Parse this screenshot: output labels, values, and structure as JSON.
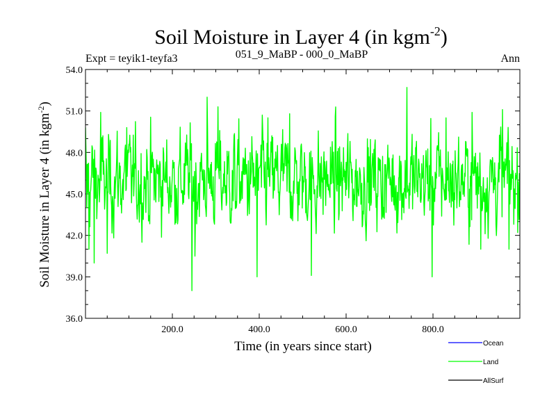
{
  "chart_data": {
    "type": "line",
    "title": "Soil Moisture in Layer 4 (in kgm",
    "title_sup": "-2",
    "title_close": ")",
    "subtitle_left": "Expt = teyik1-teyfa3",
    "subtitle_center": "051_9_MaBP - 000_0_MaBP",
    "subtitle_right": "Ann",
    "xlabel": "Time (in years since start)",
    "ylabel": "Soil Moisture in Layer 4 (in kgm",
    "ylabel_sup": "-2",
    "ylabel_close": ")",
    "xlim": [
      0,
      1000
    ],
    "ylim": [
      36.0,
      54.0
    ],
    "x_ticks": [
      200,
      400,
      600,
      800
    ],
    "x_tick_labels": [
      "200.0",
      "400.0",
      "600.0",
      "800.0"
    ],
    "y_ticks": [
      36,
      39,
      42,
      45,
      48,
      51,
      54
    ],
    "y_tick_labels": [
      "36.0",
      "39.0",
      "42.0",
      "45.0",
      "48.0",
      "51.0",
      "54.0"
    ],
    "legend": [
      {
        "name": "Ocean",
        "color": "#0000ff"
      },
      {
        "name": "Land",
        "color": "#00ff00"
      },
      {
        "name": "AllSurf",
        "color": "#000000"
      }
    ],
    "series": [
      {
        "name": "Land",
        "color": "#00ff00",
        "n_points": 1000,
        "mean": 46.0,
        "std": 1.8,
        "min": 38.0,
        "max": 52.7,
        "notable_points": [
          {
            "x": 0,
            "y": 49.8
          },
          {
            "x": 3,
            "y": 44.0
          },
          {
            "x": 8,
            "y": 41.0
          },
          {
            "x": 20,
            "y": 40.0
          },
          {
            "x": 35,
            "y": 50.9
          },
          {
            "x": 50,
            "y": 40.7
          },
          {
            "x": 95,
            "y": 49.8
          },
          {
            "x": 245,
            "y": 38.0
          },
          {
            "x": 252,
            "y": 40.5
          },
          {
            "x": 280,
            "y": 52.0
          },
          {
            "x": 305,
            "y": 51.3
          },
          {
            "x": 340,
            "y": 44.5
          },
          {
            "x": 395,
            "y": 39.0
          },
          {
            "x": 420,
            "y": 50.5
          },
          {
            "x": 470,
            "y": 50.8
          },
          {
            "x": 520,
            "y": 39.1
          },
          {
            "x": 575,
            "y": 50.6
          },
          {
            "x": 720,
            "y": 44.0
          },
          {
            "x": 740,
            "y": 52.7
          },
          {
            "x": 798,
            "y": 39.0
          },
          {
            "x": 830,
            "y": 50.5
          },
          {
            "x": 890,
            "y": 50.9
          },
          {
            "x": 910,
            "y": 41.0
          },
          {
            "x": 960,
            "y": 51.1
          },
          {
            "x": 975,
            "y": 41.0
          },
          {
            "x": 999,
            "y": 46.5
          }
        ]
      }
    ]
  }
}
